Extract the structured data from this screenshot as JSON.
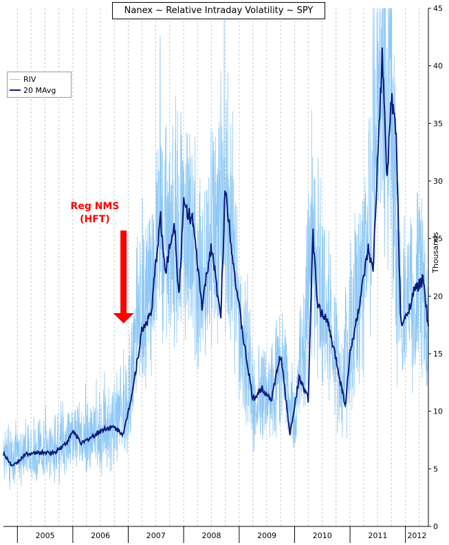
{
  "chart_data": {
    "type": "line",
    "title": "Nanex ~ Relative Intraday Volatility ~ SPY",
    "ylabel": "Thousands",
    "ylim": [
      0,
      45
    ],
    "y_ticks": [
      0,
      5,
      10,
      15,
      20,
      25,
      30,
      35,
      40,
      45
    ],
    "x_ticks": [
      "2005",
      "2006",
      "2007",
      "2008",
      "2009",
      "2010",
      "2011",
      "2012"
    ],
    "xlim": [
      "2004-10-01",
      "2012-05-31"
    ],
    "grid": true,
    "legend_position": "top-left",
    "series": [
      {
        "name": "RIV",
        "color": "#8fc8f5",
        "points": [
          [
            "2004-10-01",
            6.3
          ],
          [
            "2005-01-01",
            6.0
          ],
          [
            "2005-04-01",
            6.6
          ],
          [
            "2005-07-01",
            6.5
          ],
          [
            "2005-10-01",
            7.0
          ],
          [
            "2006-01-01",
            8.0
          ],
          [
            "2006-04-01",
            7.8
          ],
          [
            "2006-07-01",
            8.3
          ],
          [
            "2006-10-01",
            8.6
          ],
          [
            "2007-01-01",
            11.0
          ],
          [
            "2007-03-01",
            16.5
          ],
          [
            "2007-06-01",
            20.0
          ],
          [
            "2007-08-01",
            27.0
          ],
          [
            "2007-10-01",
            24.0
          ],
          [
            "2008-01-01",
            28.0
          ],
          [
            "2008-04-01",
            21.0
          ],
          [
            "2008-07-01",
            24.0
          ],
          [
            "2008-10-01",
            29.5
          ],
          [
            "2009-01-01",
            17.0
          ],
          [
            "2009-04-01",
            11.5
          ],
          [
            "2009-07-01",
            11.5
          ],
          [
            "2009-10-01",
            14.0
          ],
          [
            "2010-01-01",
            9.0
          ],
          [
            "2010-05-01",
            25.0
          ],
          [
            "2010-08-01",
            18.0
          ],
          [
            "2010-11-01",
            13.0
          ],
          [
            "2011-01-01",
            16.0
          ],
          [
            "2011-04-01",
            23.0
          ],
          [
            "2011-08-01",
            40.0
          ],
          [
            "2011-10-01",
            34.0
          ],
          [
            "2011-12-01",
            18.0
          ],
          [
            "2012-02-01",
            19.0
          ],
          [
            "2012-04-01",
            21.0
          ],
          [
            "2012-05-31",
            17.0
          ]
        ]
      },
      {
        "name": "20 MAvg",
        "color": "#0b1b7c",
        "points": [
          [
            "2004-10-01",
            6.3
          ],
          [
            "2004-12-01",
            5.2
          ],
          [
            "2005-03-01",
            6.3
          ],
          [
            "2005-06-01",
            6.4
          ],
          [
            "2005-09-01",
            6.4
          ],
          [
            "2005-12-01",
            7.4
          ],
          [
            "2006-01-01",
            8.3
          ],
          [
            "2006-03-01",
            7.2
          ],
          [
            "2006-06-01",
            8.0
          ],
          [
            "2006-08-01",
            8.5
          ],
          [
            "2006-10-01",
            8.6
          ],
          [
            "2006-12-01",
            8.0
          ],
          [
            "2007-02-01",
            12.0
          ],
          [
            "2007-04-01",
            17.0
          ],
          [
            "2007-06-01",
            18.5
          ],
          [
            "2007-08-01",
            27.0
          ],
          [
            "2007-09-01",
            22.0
          ],
          [
            "2007-11-01",
            26.5
          ],
          [
            "2007-12-01",
            20.0
          ],
          [
            "2008-01-01",
            28.0
          ],
          [
            "2008-03-01",
            26.5
          ],
          [
            "2008-05-01",
            19.0
          ],
          [
            "2008-07-01",
            24.5
          ],
          [
            "2008-09-01",
            18.0
          ],
          [
            "2008-10-01",
            29.5
          ],
          [
            "2008-12-01",
            22.0
          ],
          [
            "2009-02-01",
            16.0
          ],
          [
            "2009-04-01",
            11.0
          ],
          [
            "2009-06-01",
            12.0
          ],
          [
            "2009-08-01",
            11.0
          ],
          [
            "2009-10-01",
            15.0
          ],
          [
            "2009-12-01",
            8.0
          ],
          [
            "2010-02-01",
            13.0
          ],
          [
            "2010-04-01",
            11.0
          ],
          [
            "2010-05-01",
            25.5
          ],
          [
            "2010-06-01",
            19.0
          ],
          [
            "2010-08-01",
            18.0
          ],
          [
            "2010-10-01",
            14.5
          ],
          [
            "2010-12-01",
            10.5
          ],
          [
            "2011-01-01",
            15.0
          ],
          [
            "2011-03-01",
            19.0
          ],
          [
            "2011-05-01",
            24.0
          ],
          [
            "2011-06-01",
            22.0
          ],
          [
            "2011-08-01",
            41.0
          ],
          [
            "2011-09-01",
            30.0
          ],
          [
            "2011-10-01",
            37.5
          ],
          [
            "2011-11-01",
            34.0
          ],
          [
            "2011-12-01",
            17.5
          ],
          [
            "2012-01-01",
            18.0
          ],
          [
            "2012-03-01",
            20.5
          ],
          [
            "2012-05-01",
            21.5
          ],
          [
            "2012-05-31",
            17.0
          ]
        ]
      }
    ],
    "annotation": {
      "text_lines": [
        "Reg NMS",
        "(HFT)"
      ],
      "color": "#ff0000",
      "points_to": "2006-12-01"
    }
  }
}
